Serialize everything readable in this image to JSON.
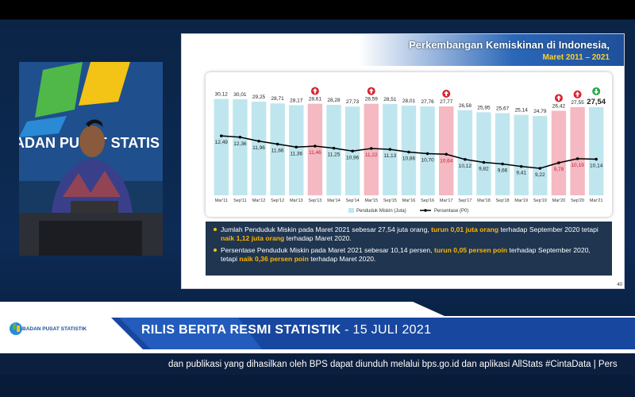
{
  "chart_data": {
    "type": "bar",
    "title": "Perkembangan Kemiskinan di Indonesia,",
    "subtitle": "Maret 2011 – 2021",
    "categories": [
      "Mar'11",
      "Sep'11",
      "Mar'12",
      "Sep'12",
      "Mar'13",
      "Sep'13",
      "Mar'14",
      "Sep'14",
      "Mar'15",
      "Sep'15",
      "Mar'16",
      "Sep'16",
      "Mar'17",
      "Sep'17",
      "Mar'18",
      "Sep'18",
      "Mar'19",
      "Sep'19",
      "Mar'20",
      "Sep'20",
      "Mar'21"
    ],
    "series": [
      {
        "name": "Penduduk Miskin (Juta)",
        "type": "bar",
        "color": "#bfe6ee",
        "colors": [
          "#bfe6ee",
          "#bfe6ee",
          "#bfe6ee",
          "#bfe6ee",
          "#bfe6ee",
          "#f4b9c2",
          "#bfe6ee",
          "#bfe6ee",
          "#f4b9c2",
          "#bfe6ee",
          "#bfe6ee",
          "#bfe6ee",
          "#f4b9c2",
          "#bfe6ee",
          "#bfe6ee",
          "#bfe6ee",
          "#bfe6ee",
          "#bfe6ee",
          "#f4b9c2",
          "#f4b9c2",
          "#bfe6ee"
        ],
        "values": [
          30.12,
          30.01,
          29.25,
          28.71,
          28.17,
          28.61,
          28.28,
          27.73,
          28.59,
          28.51,
          28.01,
          27.76,
          27.77,
          26.58,
          25.95,
          25.67,
          25.14,
          24.79,
          26.42,
          27.55,
          27.54
        ],
        "value_labels": [
          "30,12",
          "30,01",
          "29,25",
          "28,71",
          "28,17",
          "28,61",
          "28,28",
          "27,73",
          "28,59",
          "28,51",
          "28,01",
          "27,76",
          "27,77",
          "26,58",
          "25,95",
          "25,67",
          "25,14",
          "24,79",
          "26,42",
          "27,55",
          "27,54"
        ]
      },
      {
        "name": "Persentase (P0)",
        "type": "line",
        "axis": "y2",
        "color": "#000000",
        "values": [
          12.49,
          12.36,
          11.96,
          11.66,
          11.36,
          11.46,
          11.25,
          10.96,
          11.22,
          11.13,
          10.86,
          10.7,
          10.64,
          10.12,
          9.82,
          9.66,
          9.41,
          9.22,
          9.78,
          10.19,
          10.14
        ],
        "value_labels": [
          "12,49",
          "12,36",
          "11,96",
          "11,66",
          "11,36",
          "11,46",
          "11,25",
          "10,96",
          "11,22",
          "11,13",
          "10,86",
          "10,70",
          "10,64",
          "10,12",
          "9,82",
          "9,66",
          "9,41",
          "9,22",
          "9,78",
          "10,19",
          "10,14"
        ]
      }
    ],
    "trend_icons": [
      null,
      null,
      null,
      null,
      null,
      "up",
      null,
      null,
      "up",
      null,
      null,
      null,
      "up",
      null,
      null,
      null,
      null,
      null,
      "up",
      "up",
      "down"
    ],
    "ylim": [
      0,
      31
    ],
    "y2lim": [
      6.5,
      16.5
    ],
    "grid": false,
    "legend": "bottom"
  },
  "notes": [
    [
      {
        "text": "Jumlah Penduduk Miskin pada Maret 2021 sebesar 27,54 juta orang, "
      },
      {
        "text": "turun 0,01 juta orang",
        "highlight": true
      },
      {
        "text": " terhadap September 2020 tetapi "
      },
      {
        "text": "naik 1,12 juta orang",
        "highlight": true
      },
      {
        "text": " terhadap Maret 2020."
      }
    ],
    [
      {
        "text": "Persentase Penduduk Miskin pada Maret 2021 sebesar 10,14 persen, "
      },
      {
        "text": "turun 0,05 persen poin",
        "highlight": true
      },
      {
        "text": " terhadap September 2020, tetapi "
      },
      {
        "text": "naik 0,36 persen poin",
        "highlight": true
      },
      {
        "text": " terhadap Maret 2020."
      }
    ]
  ],
  "page_number": "40",
  "camera": {
    "wall_text": "ADAN PUSAT STATIS"
  },
  "banner": {
    "logo_text": "BADAN PUSAT STATISTIK",
    "title": "RILIS BERITA RESMI STATISTIK",
    "date": "- 15 JULI 2021"
  },
  "ticker": "dan publikasi yang dihasilkan oleh BPS dapat diunduh melalui bps.go.id dan aplikasi AllStats #CintaData  |  Pers"
}
